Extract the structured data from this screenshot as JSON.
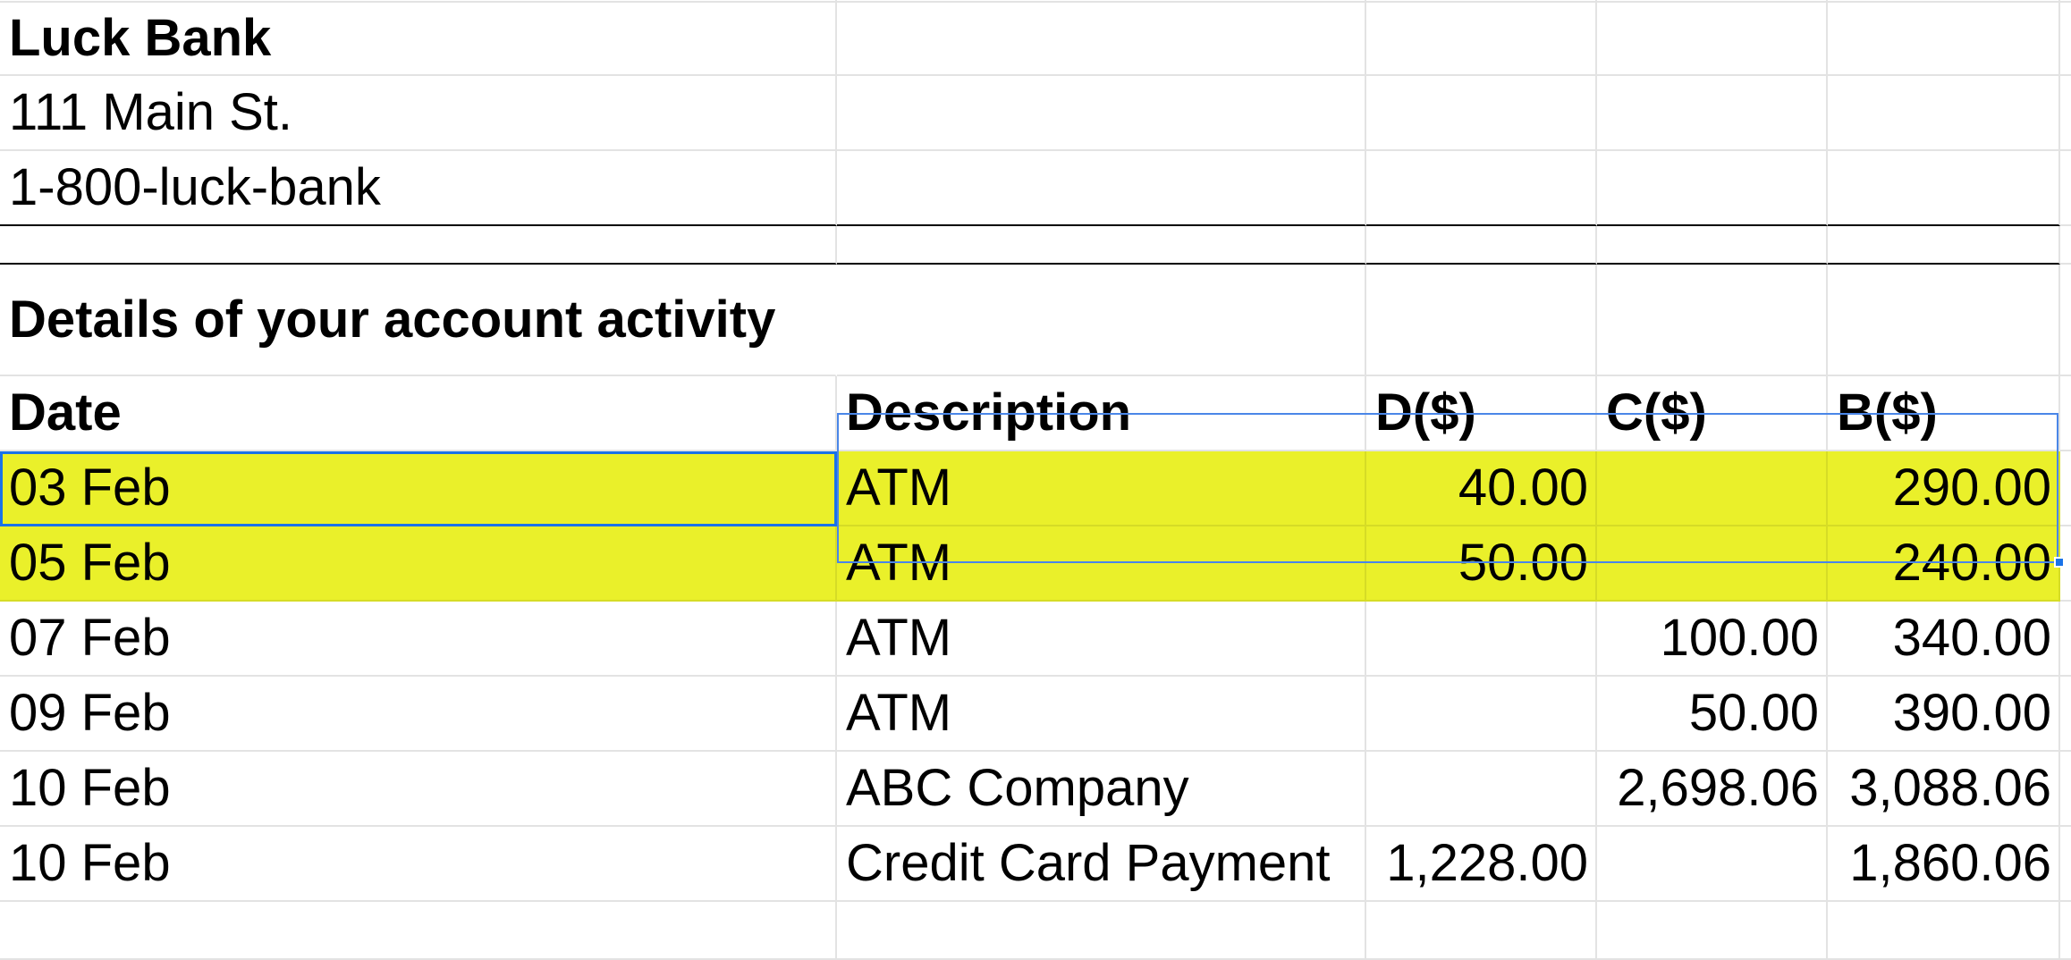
{
  "bank": {
    "name": "Luck Bank",
    "address": "111 Main St.",
    "phone": "1-800-luck-bank"
  },
  "section_title": "Details of your account activity",
  "table": {
    "headers": {
      "date": "Date",
      "description": "Description",
      "debit": "D($)",
      "credit": "C($)",
      "balance": "B($)"
    },
    "rows": [
      {
        "date": "03 Feb",
        "description": "ATM",
        "debit": "40.00",
        "credit": "",
        "balance": "290.00"
      },
      {
        "date": "05 Feb",
        "description": "ATM",
        "debit": "50.00",
        "credit": "",
        "balance": "240.00"
      },
      {
        "date": "07 Feb",
        "description": "ATM",
        "debit": "",
        "credit": "100.00",
        "balance": "340.00"
      },
      {
        "date": "09 Feb",
        "description": "ATM",
        "debit": "",
        "credit": "50.00",
        "balance": "390.00"
      },
      {
        "date": "10 Feb",
        "description": "ABC Company",
        "debit": "",
        "credit": "2,698.06",
        "balance": "3,088.06"
      },
      {
        "date": "10 Feb",
        "description": "Credit Card Payment",
        "debit": "1,228.00",
        "credit": "",
        "balance": "1,860.06"
      }
    ]
  },
  "colors": {
    "highlight": "#eaf02a",
    "selection": "#1a73e8",
    "gridline": "#e3e3e3"
  }
}
